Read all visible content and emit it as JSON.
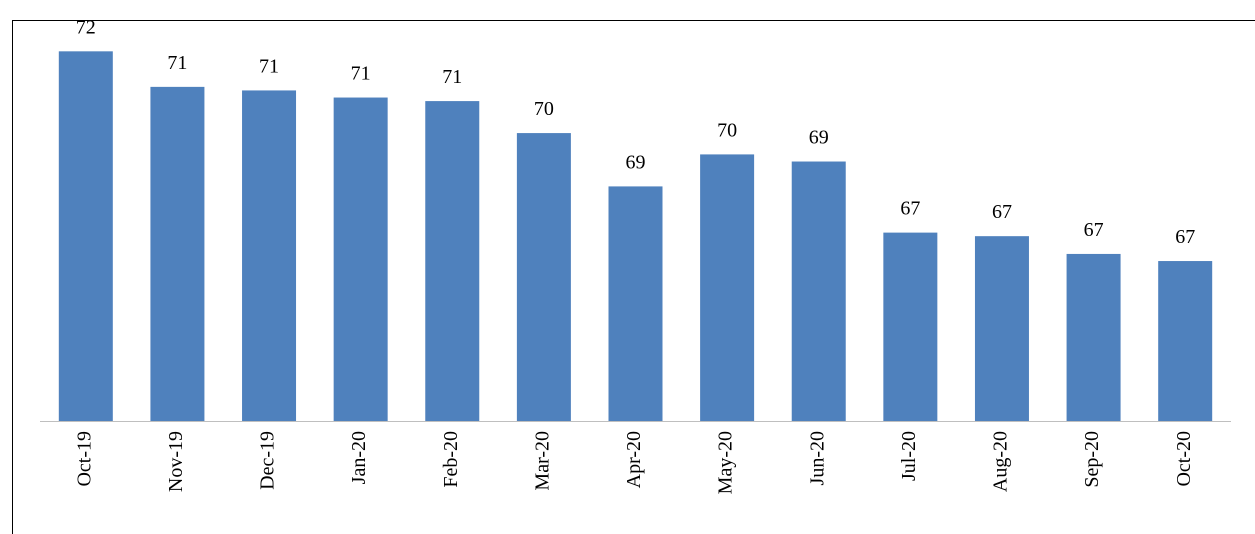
{
  "chart_data": {
    "type": "bar",
    "categories": [
      "Oct-19",
      "Nov-19",
      "Dec-19",
      "Jan-20",
      "Feb-20",
      "Mar-20",
      "Apr-20",
      "May-20",
      "Jun-20",
      "Jul-20",
      "Aug-20",
      "Sep-20",
      "Oct-20"
    ],
    "values": [
      72.4,
      71.4,
      71.3,
      71.1,
      71.0,
      70.1,
      68.6,
      69.5,
      69.3,
      67.3,
      67.2,
      66.7,
      66.5
    ],
    "value_labels": [
      "72",
      "71",
      "71",
      "71",
      "71",
      "70",
      "69",
      "70",
      "69",
      "67",
      "67",
      "67",
      "67"
    ],
    "color": "#4f81bd",
    "ylim": [
      62,
      73
    ]
  }
}
